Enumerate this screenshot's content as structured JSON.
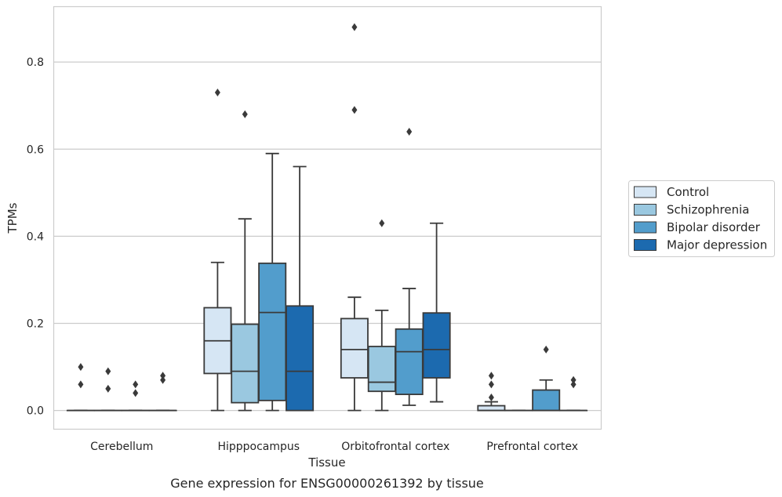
{
  "caption": "Gene expression for ENSG00000261392 by tissue",
  "chart_data": {
    "type": "boxplot",
    "xlabel": "Tissue",
    "ylabel": "TPMs",
    "ylim": [
      -0.042,
      0.928
    ],
    "yticks": [
      0.0,
      0.2,
      0.4,
      0.6,
      0.8
    ],
    "ytick_labels": [
      "0.0",
      "0.2",
      "0.4",
      "0.6",
      "0.8"
    ],
    "grid": "horizontal",
    "legend_position": "right-outside",
    "categories": [
      "Cerebellum",
      "Hipppocampus",
      "Orbitofrontal cortex",
      "Prefrontal cortex"
    ],
    "series": [
      {
        "name": "Control",
        "color": "#d6e6f4",
        "boxes": [
          {
            "lw": 0,
            "q1": 0,
            "med": 0,
            "q3": 0,
            "uw": 0,
            "outliers": [
              0.06,
              0.1
            ]
          },
          {
            "lw": 0,
            "q1": 0.085,
            "med": 0.16,
            "q3": 0.236,
            "uw": 0.34,
            "outliers": [
              0.73
            ]
          },
          {
            "lw": 0,
            "q1": 0.075,
            "med": 0.14,
            "q3": 0.211,
            "uw": 0.26,
            "outliers": [
              0.69,
              0.88
            ]
          },
          {
            "lw": 0,
            "q1": 0,
            "med": 0,
            "q3": 0.011,
            "uw": 0.02,
            "outliers": [
              0.03,
              0.06,
              0.08
            ]
          }
        ]
      },
      {
        "name": "Schizophrenia",
        "color": "#9ac8e0",
        "boxes": [
          {
            "lw": 0,
            "q1": 0,
            "med": 0,
            "q3": 0,
            "uw": 0,
            "outliers": [
              0.05,
              0.09
            ]
          },
          {
            "lw": 0,
            "q1": 0.018,
            "med": 0.09,
            "q3": 0.198,
            "uw": 0.44,
            "outliers": [
              0.68
            ]
          },
          {
            "lw": 0,
            "q1": 0.044,
            "med": 0.065,
            "q3": 0.147,
            "uw": 0.23,
            "outliers": [
              0.43
            ]
          },
          {
            "lw": 0,
            "q1": 0,
            "med": 0,
            "q3": 0,
            "uw": 0,
            "outliers": []
          }
        ]
      },
      {
        "name": "Bipolar disorder",
        "color": "#529dcc",
        "boxes": [
          {
            "lw": 0,
            "q1": 0,
            "med": 0,
            "q3": 0,
            "uw": 0,
            "outliers": [
              0.04,
              0.06
            ]
          },
          {
            "lw": 0,
            "q1": 0.023,
            "med": 0.225,
            "q3": 0.338,
            "uw": 0.59,
            "outliers": []
          },
          {
            "lw": 0.012,
            "q1": 0.037,
            "med": 0.135,
            "q3": 0.187,
            "uw": 0.28,
            "outliers": [
              0.64
            ]
          },
          {
            "lw": 0,
            "q1": 0,
            "med": 0,
            "q3": 0.047,
            "uw": 0.07,
            "outliers": [
              0.14
            ]
          }
        ]
      },
      {
        "name": "Major depression",
        "color": "#1c6aaf",
        "boxes": [
          {
            "lw": 0,
            "q1": 0,
            "med": 0,
            "q3": 0,
            "uw": 0,
            "outliers": [
              0.07,
              0.08
            ]
          },
          {
            "lw": 0,
            "q1": 0,
            "med": 0.09,
            "q3": 0.24,
            "uw": 0.56,
            "outliers": []
          },
          {
            "lw": 0.02,
            "q1": 0.075,
            "med": 0.14,
            "q3": 0.224,
            "uw": 0.43,
            "outliers": []
          },
          {
            "lw": 0,
            "q1": 0,
            "med": 0,
            "q3": 0,
            "uw": 0,
            "outliers": [
              0.06,
              0.07
            ]
          }
        ]
      }
    ]
  },
  "colors": {
    "edge": "#3a3a3a",
    "grid": "#cccccc",
    "frame": "#cccccc"
  }
}
